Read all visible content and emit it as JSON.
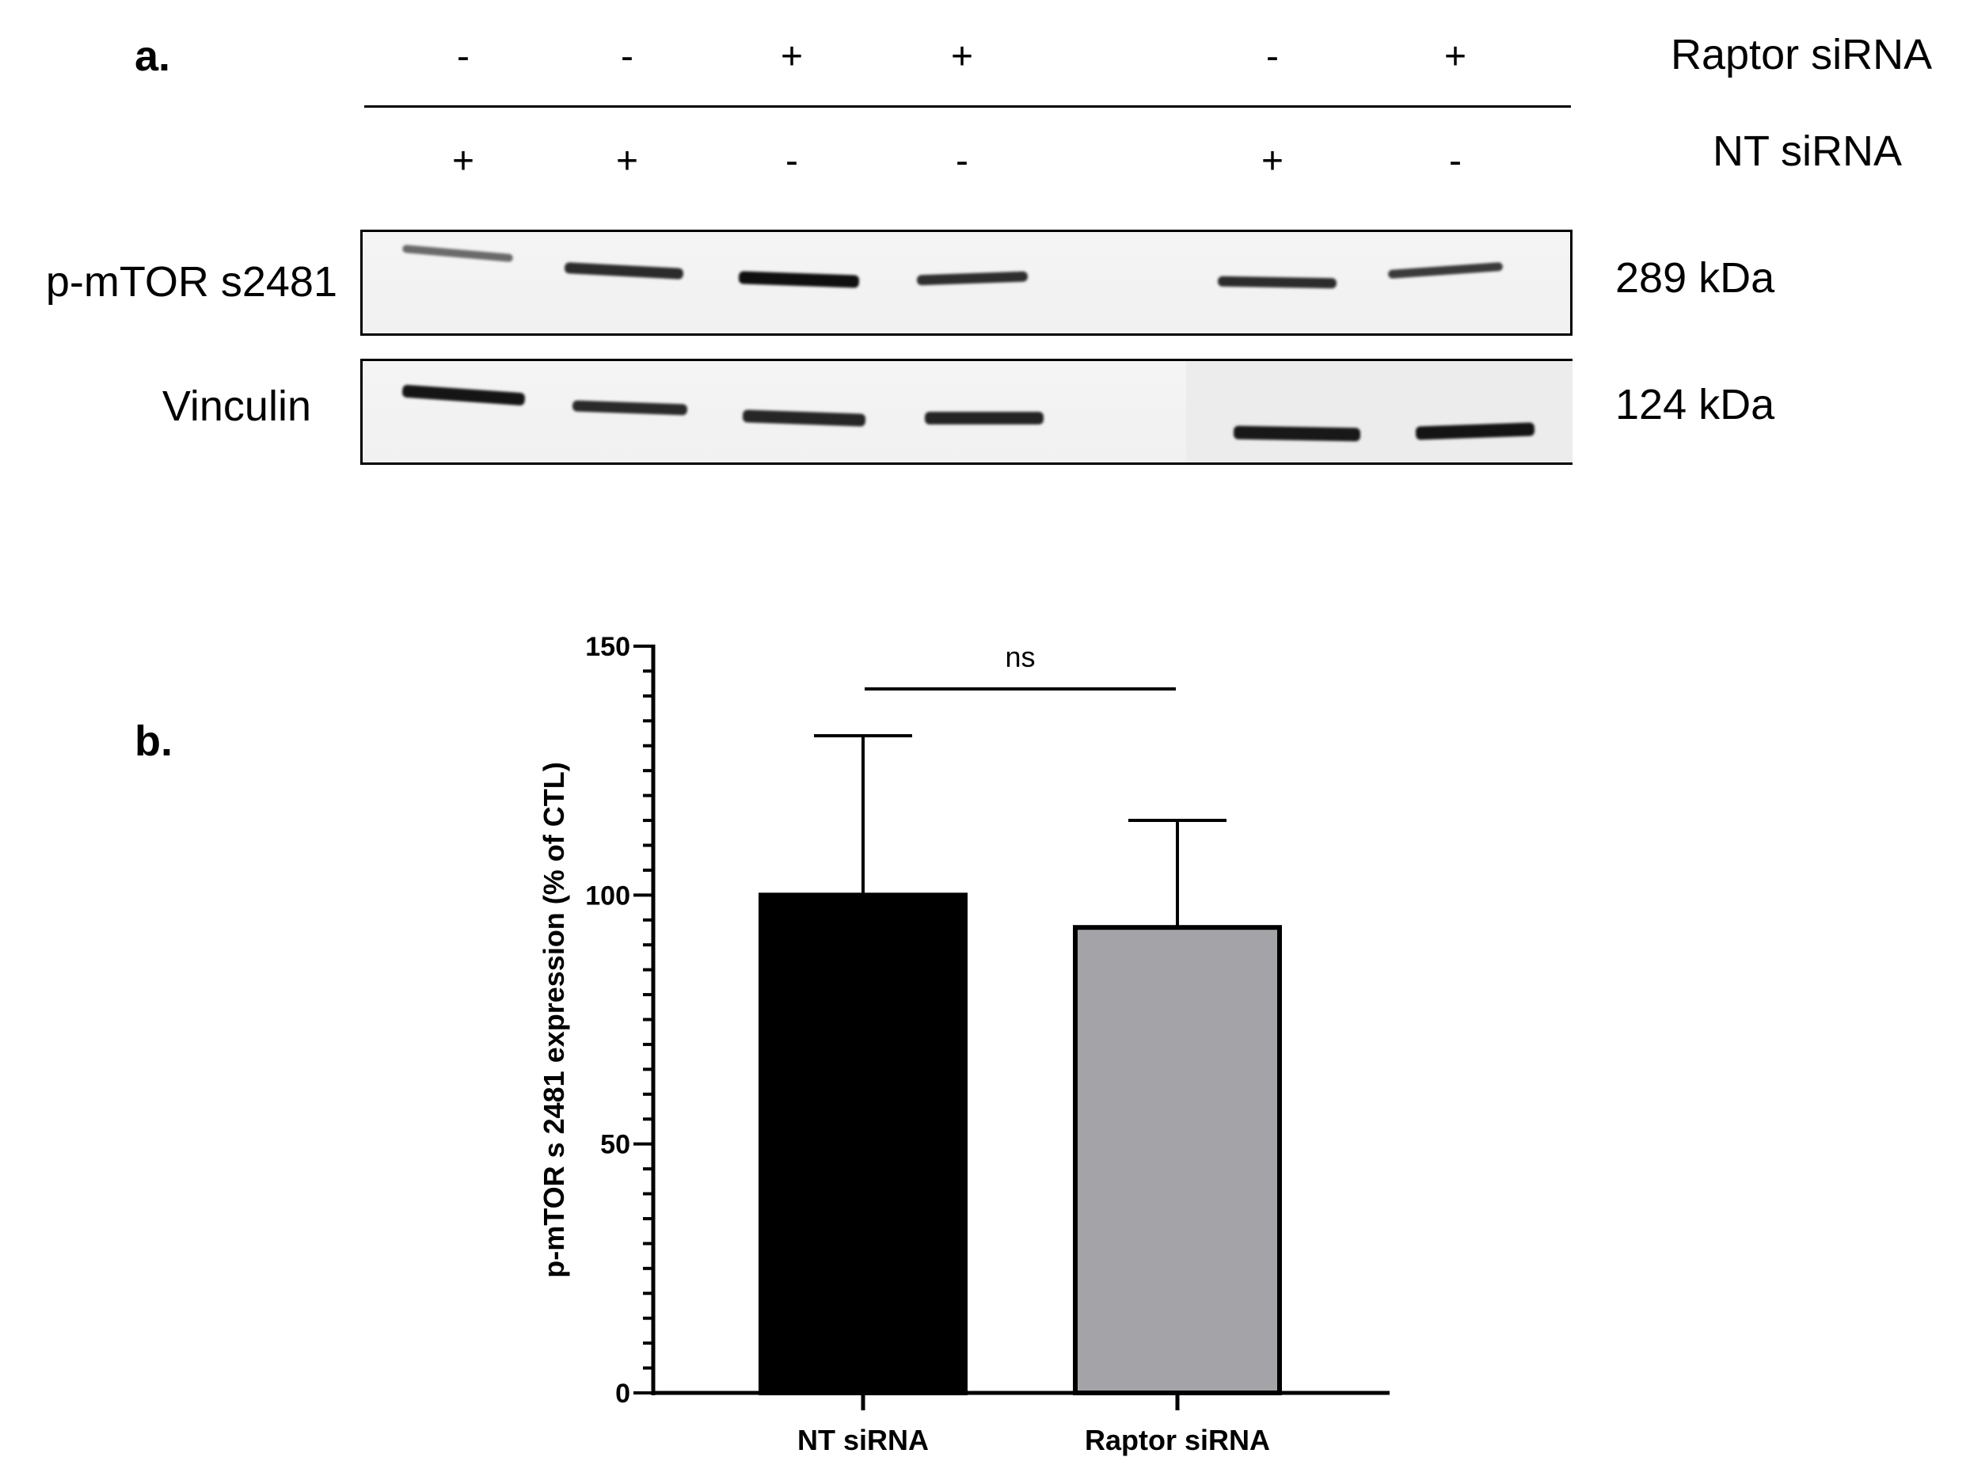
{
  "panel_a": {
    "label": "a.",
    "raptor_row": {
      "label": "Raptor siRNA",
      "signs": [
        "-",
        "-",
        "+",
        "+",
        "-",
        "+"
      ]
    },
    "nt_row": {
      "label": "NT siRNA",
      "signs": [
        "+",
        "+",
        "-",
        "-",
        "+",
        "-"
      ]
    },
    "blots": [
      {
        "label": "p-mTOR s2481",
        "kda": "289 kDa"
      },
      {
        "label": "Vinculin",
        "kda": "124 kDa"
      }
    ]
  },
  "panel_b": {
    "label": "b."
  },
  "chart_data": {
    "type": "bar",
    "categories": [
      "NT siRNA",
      "Raptor siRNA"
    ],
    "values": [
      100,
      93.5
    ],
    "error_upper": [
      132,
      115
    ],
    "bar_colors": [
      "#000000",
      "#a3a3a8"
    ],
    "ylabel": "p-mTOR s 2481 expression (% of  CTL)",
    "ylim": [
      0,
      150
    ],
    "yticks": [
      0,
      50,
      100,
      150
    ],
    "minor_tick_step": 5,
    "significance": {
      "label": "ns",
      "between": [
        0,
        1
      ]
    },
    "grid": false
  }
}
